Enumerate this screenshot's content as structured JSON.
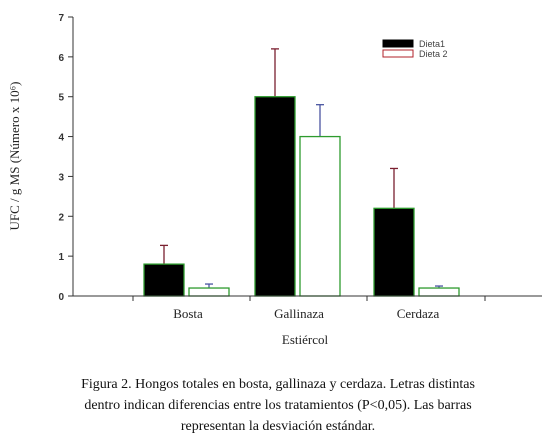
{
  "chart_data": {
    "type": "bar",
    "ylabel": "UFC / g MS (Número x 10⁶)",
    "xlabel": "Estiércol",
    "ylim": [
      0,
      7
    ],
    "yticks": [
      0,
      1,
      2,
      3,
      4,
      5,
      6,
      7
    ],
    "categories": [
      "Bosta",
      "Gallinaza",
      "Cerdaza"
    ],
    "legend_position": "top-right",
    "series": [
      {
        "name": "Dieta1",
        "values": [
          0.8,
          5.0,
          2.2
        ],
        "error": [
          0.47,
          1.2,
          1.0
        ],
        "fill": "#000000",
        "edge": "#2e9b2e",
        "errcolor": "#7a2030"
      },
      {
        "name": "Dieta 2",
        "values": [
          0.2,
          4.0,
          0.2
        ],
        "error": [
          0.1,
          0.8,
          0.05
        ],
        "fill": "#ffffff",
        "edge": "#2e9b2e",
        "errcolor": "#4a55a0"
      }
    ]
  },
  "caption": {
    "line1": "Figura 2. Hongos totales en bosta, gallinaza y cerdaza. Letras distintas",
    "line2": "dentro indican diferencias entre los tratamientos (P<0,05). Las barras",
    "line3": "representan la desviación estándar."
  }
}
